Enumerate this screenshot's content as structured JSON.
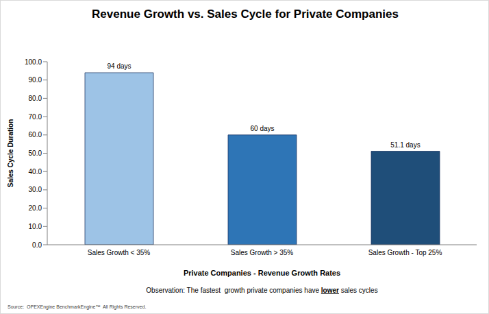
{
  "chart_data": {
    "type": "bar",
    "title": "Revenue Growth vs. Sales Cycle for Private Companies",
    "categories": [
      "Sales Growth < 35%",
      "Sales Growth > 35%",
      "Sales Growth - Top 25%"
    ],
    "values": [
      94,
      60,
      51.1
    ],
    "value_labels": [
      "94 days",
      "60 days",
      "51.1 days"
    ],
    "data_labels": true,
    "colors": [
      "#9dc3e6",
      "#2e75b6",
      "#1f4e79"
    ],
    "x_label": "Private Companies - Revenue Growth Rates",
    "y_label": "Sales Cycle Duration",
    "ylim": [
      0,
      100
    ],
    "yticks": [
      {
        "value": 0,
        "label": "0.0"
      },
      {
        "value": 10,
        "label": "10.0"
      },
      {
        "value": 20,
        "label": "20.0"
      },
      {
        "value": 30,
        "label": "30.0"
      },
      {
        "value": 40,
        "label": "40.0"
      },
      {
        "value": 50,
        "label": "50.0"
      },
      {
        "value": 60,
        "label": "60.0"
      },
      {
        "value": 70,
        "label": "70.0"
      },
      {
        "value": 80,
        "label": "80.0"
      },
      {
        "value": 90,
        "label": "90.0"
      },
      {
        "value": 100,
        "label": "100.0"
      }
    ],
    "grid": false,
    "observation": [
      "Observation: The fastest  growth private companies have ",
      "lower",
      " sales cycles"
    ],
    "source": "Source:  OPEXEngine BenchmarkEngine™  All Rights Reserved."
  }
}
